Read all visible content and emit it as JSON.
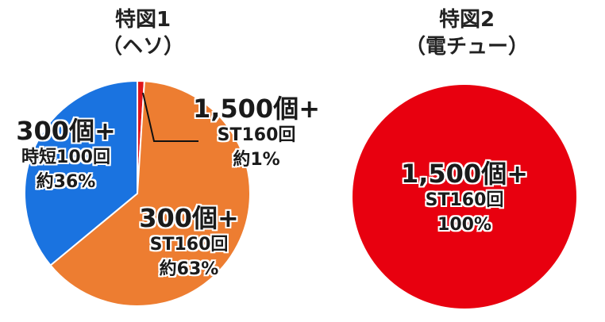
{
  "chart_data": [
    {
      "type": "pie",
      "title": "特図1",
      "subtitle": "（ヘソ）",
      "slices": [
        {
          "label": "1,500個+ ST160回",
          "prize": "1,500個+",
          "st": "ST160回",
          "percent_text": "約1%",
          "value": 1,
          "color": "#e0151a"
        },
        {
          "label": "300個+ ST160回",
          "prize": "300個+",
          "st": "ST160回",
          "percent_text": "約63%",
          "value": 63,
          "color": "#ed7d31"
        },
        {
          "label": "300個+ 時短100回",
          "prize": "300個+",
          "st": "時短100回",
          "percent_text": "約36%",
          "value": 36,
          "color": "#1a73e0"
        }
      ]
    },
    {
      "type": "pie",
      "title": "特図2",
      "subtitle": "（電チュー）",
      "slices": [
        {
          "label": "1,500個+ ST160回",
          "prize": "1,500個+",
          "st": "ST160回",
          "percent_text": "100%",
          "value": 100,
          "color": "#e8000f"
        }
      ]
    }
  ]
}
